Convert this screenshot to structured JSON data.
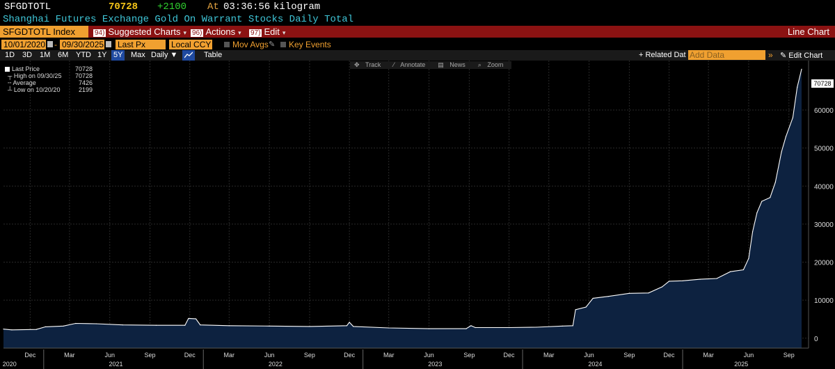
{
  "header": {
    "ticker": "SFGDTOTL",
    "last": "70728",
    "change": "+2100",
    "time_prefix": "At",
    "time": "03:36:56",
    "unit": "kilogram",
    "description": "Shanghai Futures Exchange Gold On Warrant Stocks Daily Total"
  },
  "menubar": {
    "index": "SFGDTOTL Index",
    "items": [
      {
        "num": "94)",
        "label": "Suggested Charts"
      },
      {
        "num": "96)",
        "label": "Actions"
      },
      {
        "num": "97)",
        "label": "Edit"
      }
    ],
    "right_label": "Line Chart"
  },
  "daterow": {
    "start": "10/01/2020",
    "end": "09/30/2025",
    "field": "Last Px",
    "currency": "Local CCY",
    "mov_avgs": "Mov Avgs",
    "key_events": "Key Events"
  },
  "periods": [
    "1D",
    "3D",
    "1M",
    "6M",
    "YTD",
    "1Y",
    "5Y",
    "Max"
  ],
  "active_period": "5Y",
  "frequency": "Daily",
  "table_label": "Table",
  "related": {
    "label": "+ Related Dat",
    "placeholder": "Add Data",
    "edit": "Edit Chart"
  },
  "chart_toolbar": {
    "track": "Track",
    "annotate": "Annotate",
    "news": "News",
    "zoom": "Zoom"
  },
  "legend": {
    "last_label": "Last Price",
    "last_value": "70728",
    "high_label": "High on 09/30/25",
    "high_value": "70728",
    "avg_label": "Average",
    "avg_value": "7426",
    "low_label": "Low on 10/20/20",
    "low_value": "2199"
  },
  "last_badge": "70728",
  "colors": {
    "background": "#000000",
    "fill": "#0d2240",
    "line": "#ffffff",
    "accent": "#f0a030",
    "menubar": "#8b1212"
  },
  "chart_data": {
    "type": "area",
    "title": "",
    "xlabel": "",
    "ylabel": "",
    "ylim": [
      -2600,
      73000
    ],
    "yticks": [
      0,
      10000,
      20000,
      30000,
      40000,
      50000,
      60000
    ],
    "xrange": [
      "2020-10-01",
      "2025-09-30"
    ],
    "month_ticks": [
      {
        "label": "Dec",
        "date": "2020-12-01"
      },
      {
        "label": "Mar",
        "date": "2021-03-01"
      },
      {
        "label": "Jun",
        "date": "2021-06-01"
      },
      {
        "label": "Sep",
        "date": "2021-09-01"
      },
      {
        "label": "Dec",
        "date": "2021-12-01"
      },
      {
        "label": "Mar",
        "date": "2022-03-01"
      },
      {
        "label": "Jun",
        "date": "2022-06-01"
      },
      {
        "label": "Sep",
        "date": "2022-09-01"
      },
      {
        "label": "Dec",
        "date": "2022-12-01"
      },
      {
        "label": "Mar",
        "date": "2023-03-01"
      },
      {
        "label": "Jun",
        "date": "2023-06-01"
      },
      {
        "label": "Sep",
        "date": "2023-09-01"
      },
      {
        "label": "Dec",
        "date": "2023-12-01"
      },
      {
        "label": "Mar",
        "date": "2024-03-01"
      },
      {
        "label": "Jun",
        "date": "2024-06-01"
      },
      {
        "label": "Sep",
        "date": "2024-09-01"
      },
      {
        "label": "Dec",
        "date": "2024-12-01"
      },
      {
        "label": "Mar",
        "date": "2025-03-01"
      },
      {
        "label": "Jun",
        "date": "2025-06-01"
      },
      {
        "label": "Sep",
        "date": "2025-09-01"
      }
    ],
    "year_labels": [
      {
        "label": "2020",
        "date": "2020-10-15"
      },
      {
        "label": "2021",
        "date": "2021-06-15"
      },
      {
        "label": "2022",
        "date": "2022-06-15"
      },
      {
        "label": "2023",
        "date": "2023-06-15"
      },
      {
        "label": "2024",
        "date": "2024-06-15"
      },
      {
        "label": "2025",
        "date": "2025-05-15"
      }
    ],
    "year_boundaries": [
      "2021-01-01",
      "2022-01-01",
      "2023-01-01",
      "2024-01-01",
      "2025-01-01"
    ],
    "series": [
      {
        "points": [
          [
            "2020-10-01",
            2400
          ],
          [
            "2020-10-20",
            2199
          ],
          [
            "2020-12-15",
            2300
          ],
          [
            "2021-01-05",
            3000
          ],
          [
            "2021-02-15",
            3200
          ],
          [
            "2021-03-15",
            3900
          ],
          [
            "2021-05-01",
            3800
          ],
          [
            "2021-07-01",
            3500
          ],
          [
            "2021-09-15",
            3400
          ],
          [
            "2021-11-20",
            3400
          ],
          [
            "2021-11-28",
            5200
          ],
          [
            "2021-12-15",
            5100
          ],
          [
            "2021-12-25",
            3500
          ],
          [
            "2022-03-01",
            3300
          ],
          [
            "2022-06-01",
            3200
          ],
          [
            "2022-09-01",
            3100
          ],
          [
            "2022-11-25",
            3300
          ],
          [
            "2022-12-01",
            4200
          ],
          [
            "2022-12-10",
            3100
          ],
          [
            "2023-03-01",
            2700
          ],
          [
            "2023-06-01",
            2500
          ],
          [
            "2023-08-25",
            2500
          ],
          [
            "2023-09-05",
            3300
          ],
          [
            "2023-09-15",
            2800
          ],
          [
            "2023-12-01",
            2800
          ],
          [
            "2024-02-01",
            2900
          ],
          [
            "2024-04-01",
            3200
          ],
          [
            "2024-04-25",
            3300
          ],
          [
            "2024-05-01",
            7500
          ],
          [
            "2024-05-25",
            8200
          ],
          [
            "2024-06-10",
            10500
          ],
          [
            "2024-07-15",
            11000
          ],
          [
            "2024-09-01",
            11800
          ],
          [
            "2024-10-15",
            11900
          ],
          [
            "2024-11-15",
            13500
          ],
          [
            "2024-12-01",
            15000
          ],
          [
            "2025-01-01",
            15100
          ],
          [
            "2025-02-10",
            15500
          ],
          [
            "2025-03-20",
            15700
          ],
          [
            "2025-04-20",
            17500
          ],
          [
            "2025-05-20",
            18000
          ],
          [
            "2025-06-01",
            21000
          ],
          [
            "2025-06-10",
            28000
          ],
          [
            "2025-06-20",
            33000
          ],
          [
            "2025-07-01",
            36000
          ],
          [
            "2025-07-20",
            37000
          ],
          [
            "2025-08-01",
            41000
          ],
          [
            "2025-08-15",
            49000
          ],
          [
            "2025-08-25",
            53000
          ],
          [
            "2025-09-10",
            58000
          ],
          [
            "2025-09-20",
            66000
          ],
          [
            "2025-09-30",
            70728
          ]
        ]
      }
    ]
  }
}
